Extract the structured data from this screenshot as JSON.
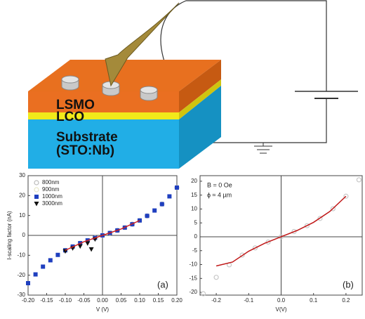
{
  "diagram": {
    "layers": [
      "LSMO",
      "LCO",
      "Substrate",
      "(STO:Nb)"
    ]
  },
  "chart_data": [
    {
      "type": "scatter",
      "panel_label": "(a)",
      "xlabel": "V (V)",
      "ylabel": "I-scaling factor (nA)",
      "xlim": [
        -0.2,
        0.2
      ],
      "ylim": [
        -30,
        30
      ],
      "xticks": [
        {
          "value": -0.2,
          "label": "-0.20"
        },
        -0.15,
        {
          "value": -0.1,
          "label": "-0.10"
        },
        -0.05,
        {
          "value": 0,
          "label": "0.00"
        },
        0.05,
        {
          "value": 0.1,
          "label": "0.10"
        },
        0.15,
        {
          "value": 0.2,
          "label": "0.20"
        }
      ],
      "yticks": [
        -30,
        -20,
        -10,
        0,
        10,
        20,
        30
      ],
      "series": [
        {
          "name": "800nm",
          "color": "#bbbbbb",
          "marker": "circle",
          "x": [
            0,
            0.04,
            0.08,
            0.12,
            0.16,
            0.2
          ],
          "values": [
            0,
            2.5,
            5.6,
            9.8,
            15.7,
            24
          ]
        },
        {
          "name": "900nm",
          "color": "#e6e6c8",
          "marker": "circle",
          "x": [
            -0.1,
            -0.06,
            -0.02,
            0.02,
            0.06,
            0.1
          ],
          "values": [
            -7.5,
            -3.9,
            -1.2,
            1.2,
            3.9,
            7.5
          ]
        },
        {
          "name": "1000nm",
          "color": "#1f3fbf",
          "marker": "square",
          "x": [
            -0.2,
            -0.18,
            -0.16,
            -0.14,
            -0.12,
            -0.1,
            -0.08,
            -0.06,
            -0.04,
            -0.02,
            0,
            0.02,
            0.04,
            0.06,
            0.08,
            0.1,
            0.12,
            0.14,
            0.16,
            0.18,
            0.2
          ],
          "values": [
            -24,
            -19.6,
            -15.7,
            -12.5,
            -9.8,
            -7.5,
            -5.6,
            -3.9,
            -2.5,
            -1.2,
            0,
            1.2,
            2.5,
            3.9,
            5.6,
            7.5,
            9.8,
            12.5,
            15.7,
            19.6,
            24
          ]
        },
        {
          "name": "3000nm",
          "color": "#111111",
          "marker": "triangle",
          "x": [
            -0.1,
            -0.08,
            -0.06,
            -0.04,
            -0.03,
            -0.02
          ],
          "values": [
            -8,
            -6.5,
            -5.5,
            -4,
            -7,
            -2
          ]
        },
        {
          "color": "#d02020",
          "marker": "line",
          "x": [
            -0.1,
            -0.05,
            0,
            0.05,
            0.1
          ],
          "values": [
            -7.5,
            -3.2,
            0,
            3.2,
            7.5
          ]
        }
      ]
    },
    {
      "type": "scatter",
      "panel_label": "(b)",
      "xlabel": "V(V)",
      "annotations": [
        "B = 0 Oe",
        "ϕ ≈ 4 µm"
      ],
      "xlim": [
        -0.25,
        0.25
      ],
      "ylim": [
        -21,
        22
      ],
      "xticks": [
        -0.2,
        -0.1,
        {
          "value": 0,
          "label": "0.0"
        },
        0.1,
        0.2
      ],
      "yticks": [
        -20,
        -15,
        -10,
        -5,
        0,
        5,
        10,
        15,
        20
      ],
      "series": [
        {
          "color": "#c8c8c8",
          "marker": "circle",
          "x": [
            -0.24,
            -0.2,
            -0.16,
            -0.12,
            -0.08,
            -0.04,
            0,
            0.04,
            0.08,
            0.12,
            0.16,
            0.2,
            0.24
          ],
          "values": [
            -20.5,
            -14.6,
            -10.1,
            -6.6,
            -4,
            -1.9,
            0,
            1.9,
            4,
            6.6,
            10.1,
            14.6,
            20.5
          ]
        },
        {
          "color": "#c01818",
          "marker": "line",
          "x": [
            -0.2,
            -0.15,
            -0.1,
            -0.05,
            0,
            0.05,
            0.1,
            0.15,
            0.2
          ],
          "values": [
            -10.5,
            -9.1,
            -5.2,
            -2.3,
            0,
            2.3,
            5.2,
            9.1,
            14.6
          ]
        }
      ]
    }
  ]
}
